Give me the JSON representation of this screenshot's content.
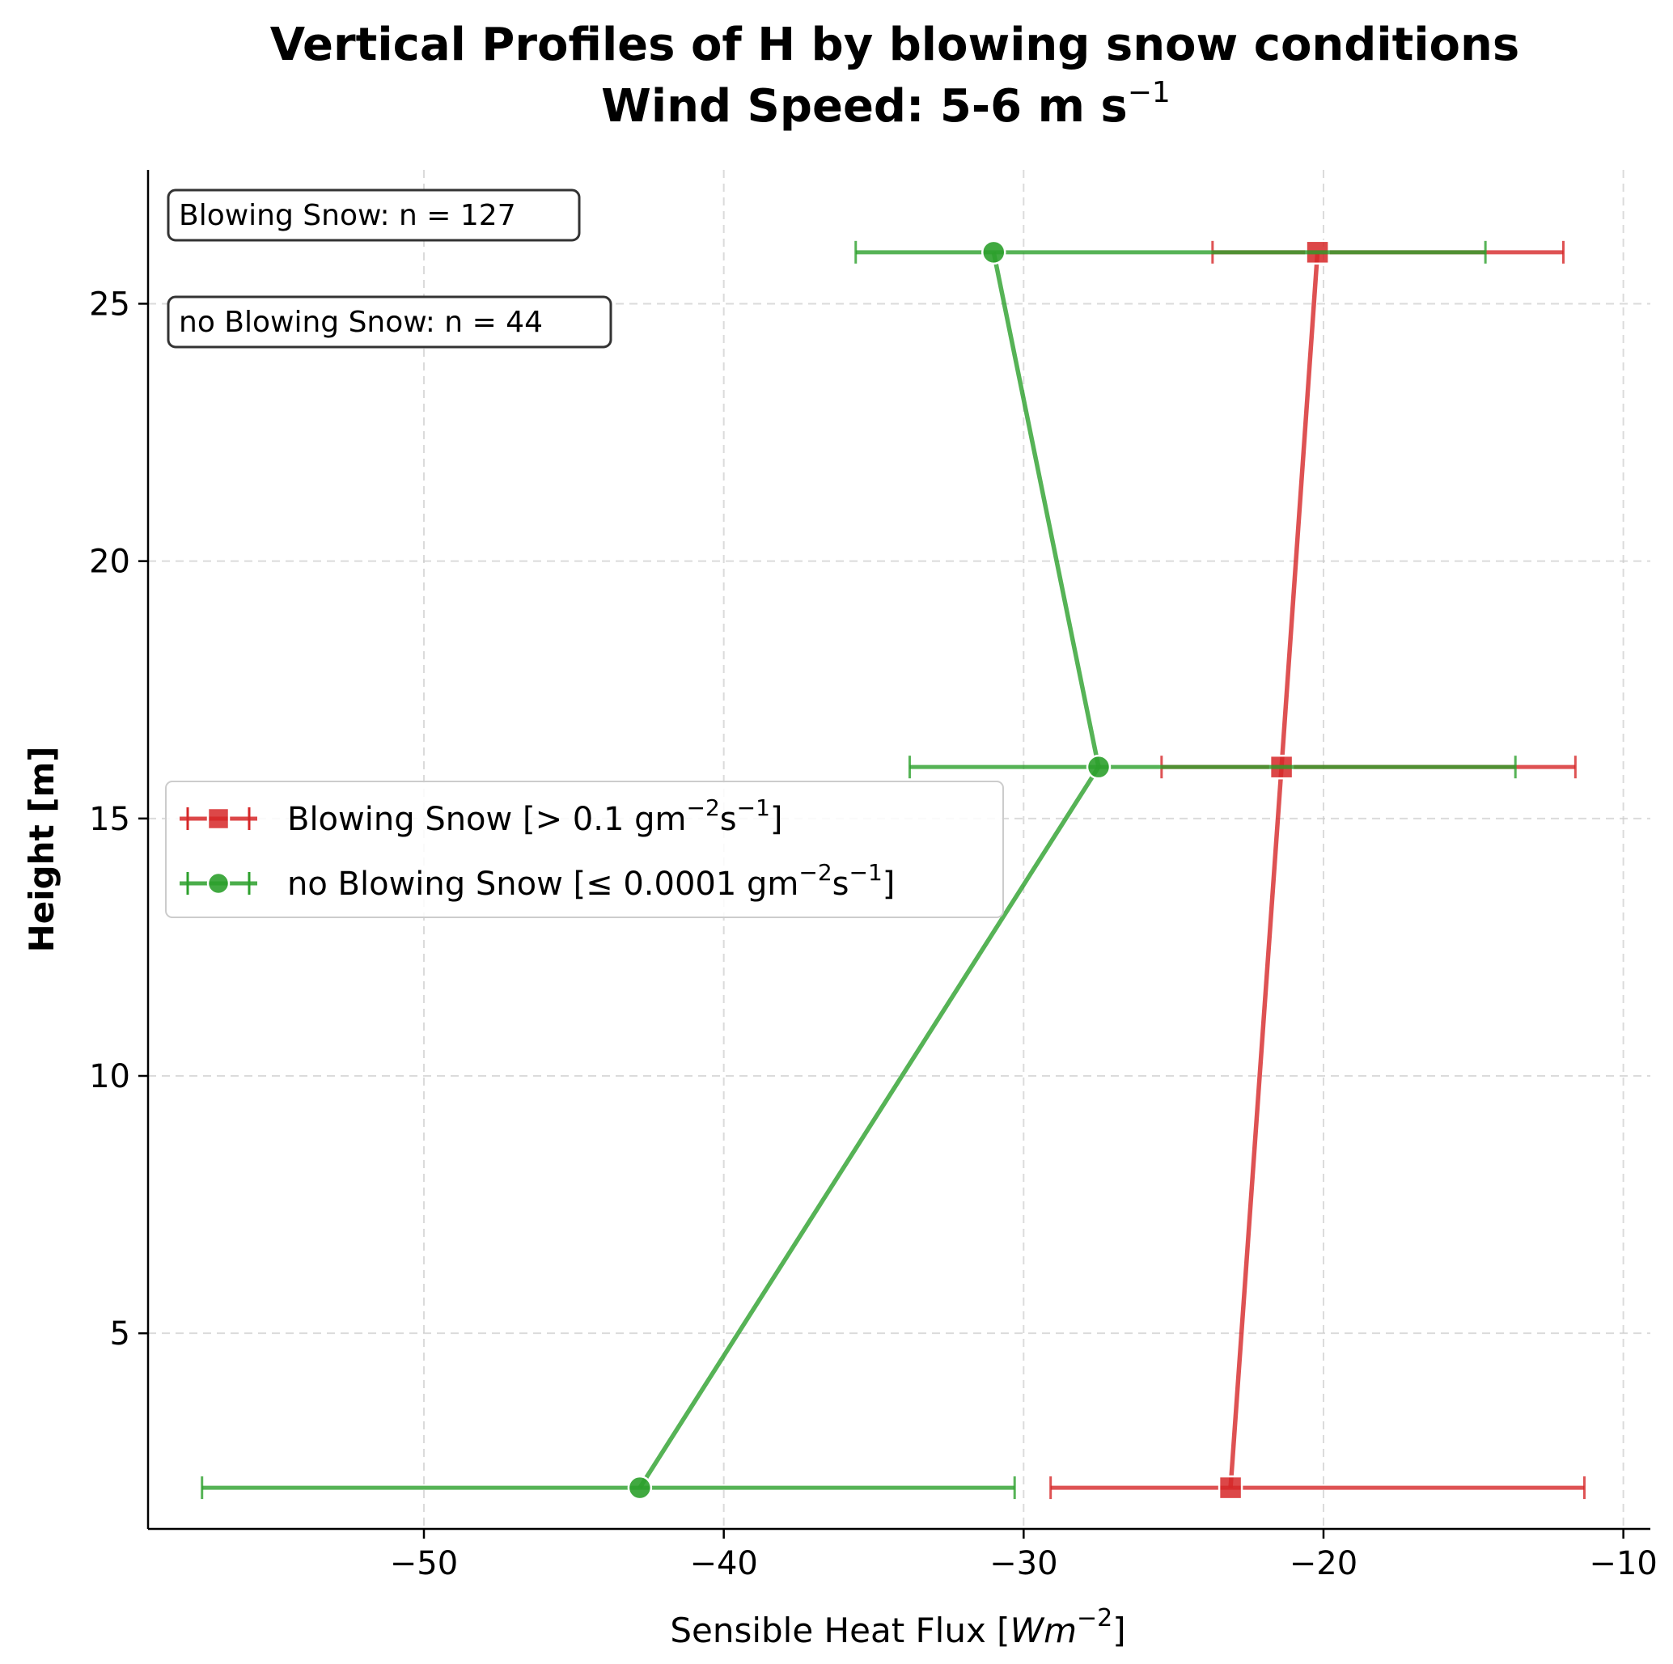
{
  "chart_data": {
    "type": "line",
    "title_line1": "Vertical Profiles of H by blowing snow conditions",
    "title_line2_main": "Wind Speed: 5-6 m s",
    "title_line2_sup": "−1",
    "xlabel_main": "Sensible Heat Flux [",
    "xlabel_italic": "Wm",
    "xlabel_sup": "−2",
    "xlabel_end": "]",
    "ylabel": "Height [m]",
    "xlim": [
      -59.2,
      -9.1
    ],
    "ylim": [
      1.2,
      27.6
    ],
    "xticks": [
      -50,
      -40,
      -30,
      -20,
      -10
    ],
    "xtick_labels": [
      "−50",
      "−40",
      "−30",
      "−20",
      "−10"
    ],
    "yticks": [
      5,
      10,
      15,
      20,
      25
    ],
    "ytick_labels": [
      "5",
      "10",
      "15",
      "20",
      "25"
    ],
    "grid": true,
    "series": [
      {
        "name": "Blowing Snow [> 0.1 gm−2s−1]",
        "legend_prefix": "Blowing Snow [> 0.1 gm",
        "legend_sup1": "−2",
        "legend_mid": "s",
        "legend_sup2": "−1",
        "legend_end": "]",
        "color": "#d62728",
        "marker": "square",
        "points": [
          {
            "height": 2,
            "value": -23.1,
            "xerr_low": -29.1,
            "xerr_high": -11.3
          },
          {
            "height": 16,
            "value": -21.4,
            "xerr_low": -25.4,
            "xerr_high": -11.6
          },
          {
            "height": 26,
            "value": -20.2,
            "xerr_low": -23.7,
            "xerr_high": -12.0
          }
        ]
      },
      {
        "name": "no Blowing Snow [≤ 0.0001 gm−2s−1]",
        "legend_prefix": "no Blowing Snow [≤ 0.0001 gm",
        "legend_sup1": "−2",
        "legend_mid": "s",
        "legend_sup2": "−1",
        "legend_end": "]",
        "color": "#2ca02c",
        "marker": "circle",
        "points": [
          {
            "height": 2,
            "value": -42.8,
            "xerr_low": -57.4,
            "xerr_high": -30.3
          },
          {
            "height": 16,
            "value": -27.5,
            "xerr_low": -33.8,
            "xerr_high": -13.6
          },
          {
            "height": 26,
            "value": -31.0,
            "xerr_low": -35.6,
            "xerr_high": -14.6
          }
        ]
      }
    ],
    "annotations": [
      "Blowing Snow: n = 127",
      "no Blowing Snow: n = 44"
    ],
    "legend_placement": "center-left"
  }
}
